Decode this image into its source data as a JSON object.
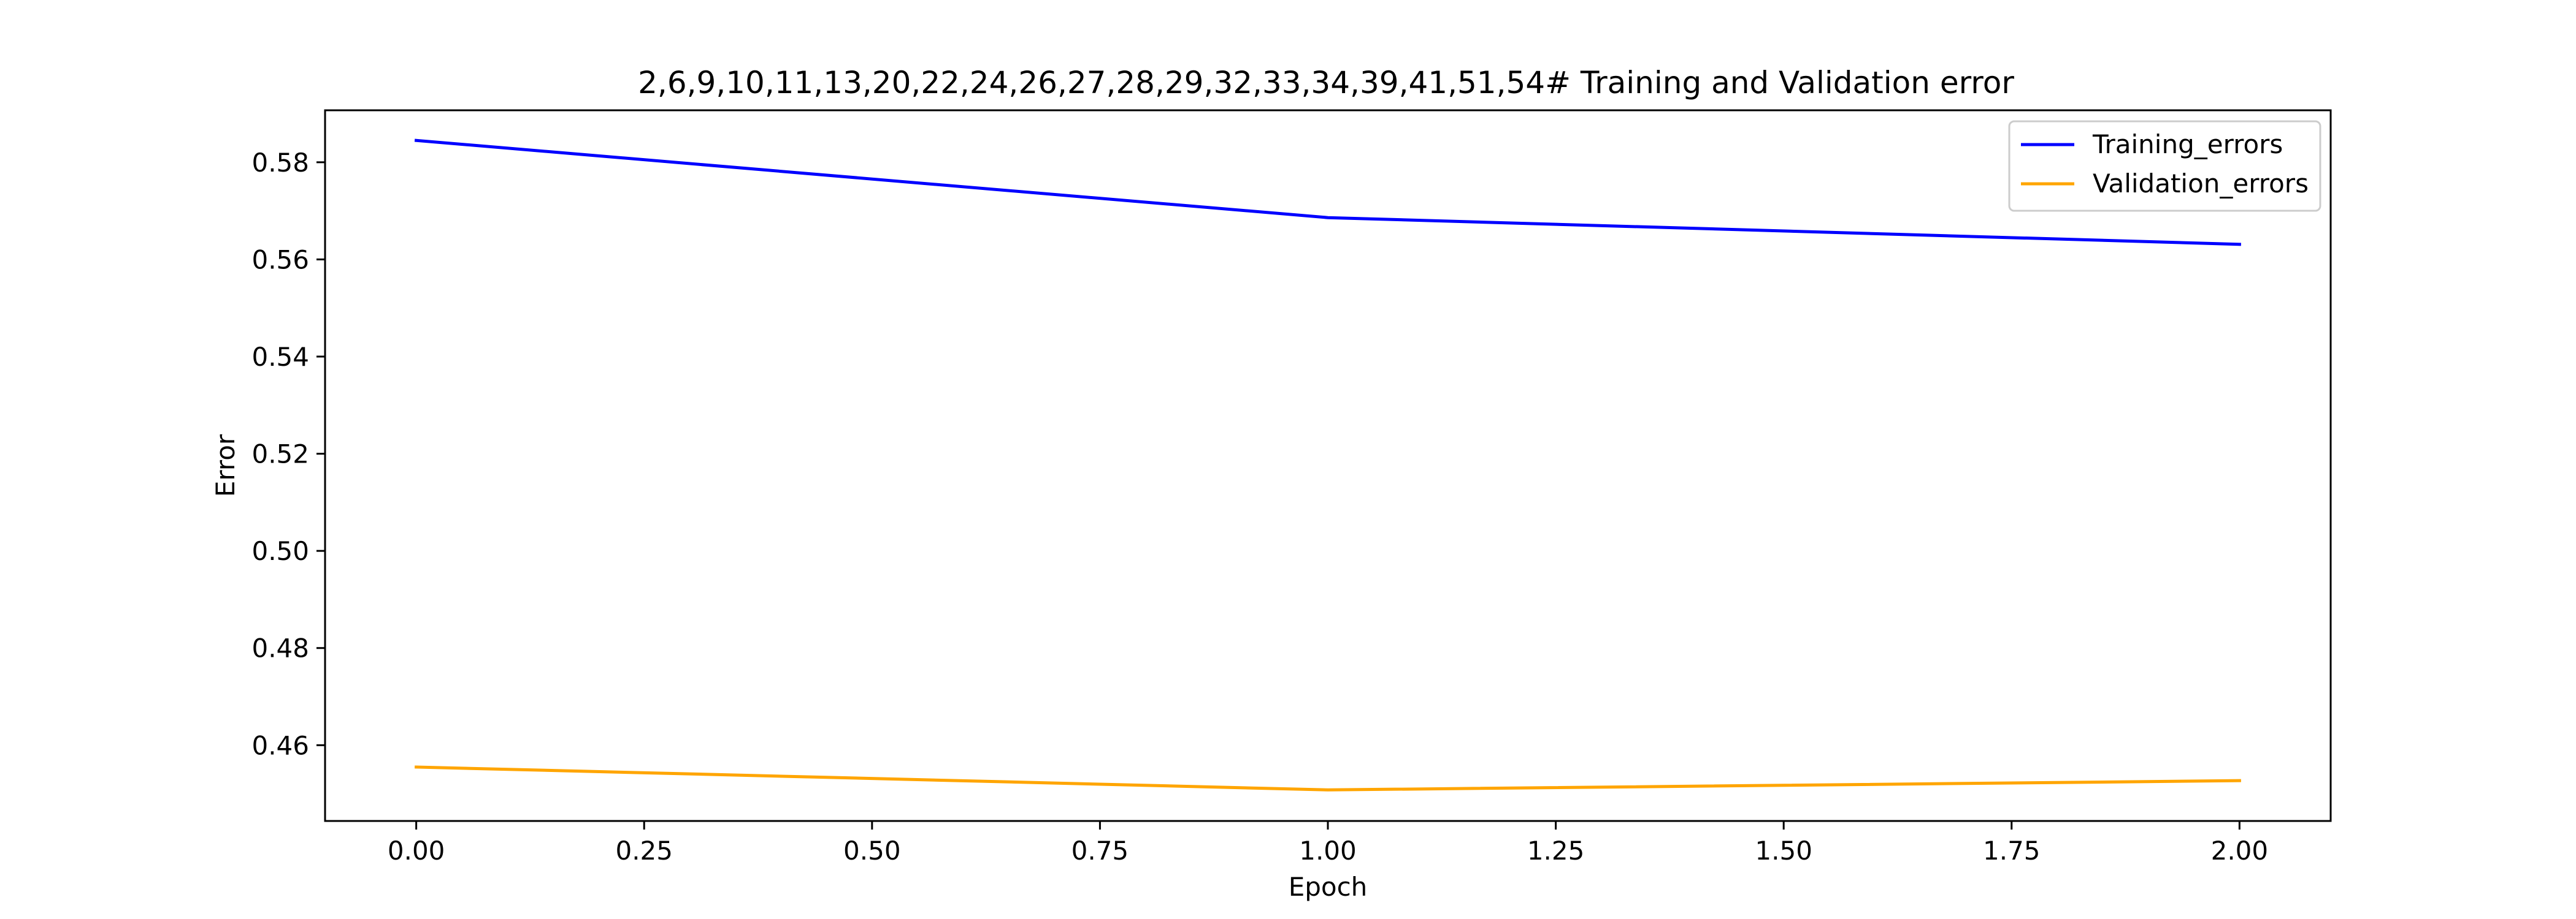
{
  "chart_data": {
    "type": "line",
    "title": "2,6,9,10,11,13,20,22,24,26,27,28,29,32,33,34,39,41,51,54# Training and Validation error",
    "xlabel": "Epoch",
    "ylabel": "Error",
    "xlim": [
      -0.1,
      2.1
    ],
    "ylim": [
      0.4444,
      0.5907
    ],
    "xticks": [
      0.0,
      0.25,
      0.5,
      0.75,
      1.0,
      1.25,
      1.5,
      1.75,
      2.0
    ],
    "xtick_labels": [
      "0.00",
      "0.25",
      "0.50",
      "0.75",
      "1.00",
      "1.25",
      "1.50",
      "1.75",
      "2.00"
    ],
    "yticks": [
      0.46,
      0.48,
      0.5,
      0.52,
      0.54,
      0.56,
      0.58
    ],
    "ytick_labels": [
      "0.46",
      "0.48",
      "0.50",
      "0.52",
      "0.54",
      "0.56",
      "0.58"
    ],
    "x": [
      0,
      1,
      2
    ],
    "series": [
      {
        "name": "Training_errors",
        "color": "#0000ff",
        "values": [
          0.5845,
          0.5686,
          0.5631
        ]
      },
      {
        "name": "Validation_errors",
        "color": "#ffa500",
        "values": [
          0.4555,
          0.4508,
          0.4527
        ]
      }
    ],
    "grid": false,
    "legend": "top-right"
  }
}
